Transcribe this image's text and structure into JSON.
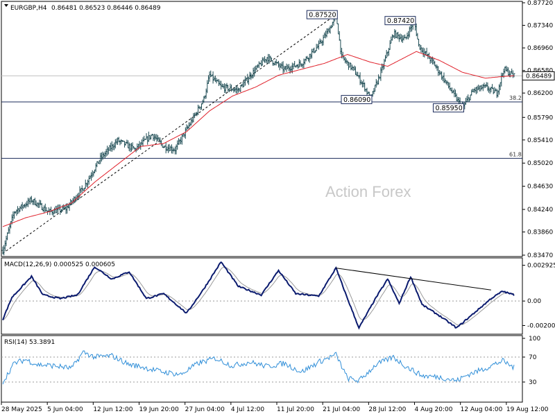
{
  "chart_data": {
    "type": "candlestick",
    "title": "EURGBP,H4",
    "ohlc_text": "0.86481 0.86523 0.86446 0.86489",
    "last_price": "0.86489",
    "watermark": "Action Forex",
    "price_axis": {
      "ylim": [
        0.8347,
        0.8772
      ],
      "ticks": [
        "0.87720",
        "0.87340",
        "0.86960",
        "0.86580",
        "0.86200",
        "0.85790",
        "0.85410",
        "0.85020",
        "0.84630",
        "0.84240",
        "0.83860",
        "0.83470"
      ]
    },
    "x_ticks": [
      "28 May 2025",
      "5 Jun 04:00",
      "12 Jun 12:00",
      "19 Jun 20:00",
      "27 Jun 04:00",
      "4 Jul 12:00",
      "11 Jul 20:00",
      "21 Jul 04:00",
      "28 Jul 12:00",
      "4 Aug 20:00",
      "12 Aug 04:00",
      "19 Aug 12:00"
    ],
    "price_anchors": [
      [
        0,
        0.8355
      ],
      [
        10,
        0.842
      ],
      [
        25,
        0.844
      ],
      [
        40,
        0.842
      ],
      [
        55,
        0.8425
      ],
      [
        70,
        0.846
      ],
      [
        85,
        0.851
      ],
      [
        100,
        0.854
      ],
      [
        115,
        0.8525
      ],
      [
        130,
        0.855
      ],
      [
        140,
        0.853
      ],
      [
        150,
        0.8525
      ],
      [
        165,
        0.8575
      ],
      [
        175,
        0.861
      ],
      [
        180,
        0.865
      ],
      [
        190,
        0.863
      ],
      [
        205,
        0.8625
      ],
      [
        220,
        0.866
      ],
      [
        230,
        0.868
      ],
      [
        245,
        0.866
      ],
      [
        260,
        0.867
      ],
      [
        275,
        0.87
      ],
      [
        285,
        0.873
      ],
      [
        290,
        0.8752
      ],
      [
        295,
        0.868
      ],
      [
        305,
        0.866
      ],
      [
        315,
        0.863
      ],
      [
        320,
        0.8609
      ],
      [
        330,
        0.866
      ],
      [
        340,
        0.872
      ],
      [
        350,
        0.871
      ],
      [
        358,
        0.8742
      ],
      [
        362,
        0.87
      ],
      [
        375,
        0.867
      ],
      [
        385,
        0.864
      ],
      [
        395,
        0.861
      ],
      [
        400,
        0.8595
      ],
      [
        410,
        0.8625
      ],
      [
        420,
        0.863
      ],
      [
        430,
        0.862
      ],
      [
        436,
        0.866
      ],
      [
        445,
        0.8649
      ]
    ],
    "ma_anchors": [
      [
        0,
        0.8395
      ],
      [
        20,
        0.841
      ],
      [
        40,
        0.842
      ],
      [
        60,
        0.8435
      ],
      [
        80,
        0.847
      ],
      [
        100,
        0.85
      ],
      [
        120,
        0.853
      ],
      [
        140,
        0.8535
      ],
      [
        160,
        0.8555
      ],
      [
        180,
        0.859
      ],
      [
        200,
        0.8615
      ],
      [
        220,
        0.863
      ],
      [
        240,
        0.865
      ],
      [
        260,
        0.866
      ],
      [
        280,
        0.867
      ],
      [
        300,
        0.8685
      ],
      [
        320,
        0.8672
      ],
      [
        335,
        0.8665
      ],
      [
        350,
        0.868
      ],
      [
        360,
        0.869
      ],
      [
        380,
        0.8675
      ],
      [
        400,
        0.8655
      ],
      [
        420,
        0.8645
      ],
      [
        436,
        0.8648
      ],
      [
        445,
        0.8649
      ]
    ],
    "swing_labels": [
      {
        "text": "0.87520",
        "bar": 290,
        "price": 0.8752
      },
      {
        "text": "0.87420",
        "bar": 358,
        "price": 0.8742
      },
      {
        "text": "0.86090",
        "bar": 320,
        "price": 0.8609
      },
      {
        "text": "0.85950",
        "bar": 400,
        "price": 0.8595
      }
    ],
    "fib_levels": [
      {
        "label": "38.2",
        "price": 0.8605
      },
      {
        "label": "61.8",
        "price": 0.851
      }
    ],
    "trendline": {
      "from": [
        0,
        0.835
      ],
      "to": [
        290,
        0.8752
      ]
    },
    "macd": {
      "title": "MACD(12,26,9) 0.000525 0.000605",
      "ylim": [
        -0.0026,
        0.0033
      ],
      "ticks": [
        "0.002925",
        "0.00",
        "-0.002002"
      ],
      "anchors": [
        [
          0,
          -0.0015
        ],
        [
          8,
          0.0003
        ],
        [
          25,
          0.002
        ],
        [
          35,
          0.0005
        ],
        [
          50,
          0.0002
        ],
        [
          65,
          0.0005
        ],
        [
          80,
          0.0028
        ],
        [
          95,
          0.0018
        ],
        [
          110,
          0.0024
        ],
        [
          125,
          0.0002
        ],
        [
          140,
          0.0006
        ],
        [
          150,
          -0.0002
        ],
        [
          160,
          -0.001
        ],
        [
          175,
          0.001
        ],
        [
          190,
          0.0032
        ],
        [
          205,
          0.0012
        ],
        [
          225,
          0.0005
        ],
        [
          240,
          0.0025
        ],
        [
          255,
          0.0006
        ],
        [
          275,
          0.0004
        ],
        [
          290,
          0.0027
        ],
        [
          300,
          0.0002
        ],
        [
          310,
          -0.0022
        ],
        [
          325,
          0.0003
        ],
        [
          335,
          0.0018
        ],
        [
          345,
          -0.0002
        ],
        [
          355,
          0.002
        ],
        [
          365,
          -0.0003
        ],
        [
          380,
          -0.0012
        ],
        [
          395,
          -0.0022
        ],
        [
          410,
          -0.001
        ],
        [
          425,
          0.0002
        ],
        [
          435,
          0.0008
        ],
        [
          445,
          0.0005
        ]
      ],
      "trendline": {
        "from": [
          290,
          0.0027
        ],
        "to": [
          425,
          0.0009
        ]
      }
    },
    "rsi": {
      "title": "RSI(14) 53.3891",
      "ylim": [
        0,
        100
      ],
      "ticks": [
        "100",
        "70",
        "30"
      ],
      "levels": [
        70,
        30
      ],
      "anchors": [
        [
          0,
          30
        ],
        [
          10,
          60
        ],
        [
          20,
          66
        ],
        [
          30,
          58
        ],
        [
          45,
          56
        ],
        [
          60,
          52
        ],
        [
          70,
          78
        ],
        [
          80,
          70
        ],
        [
          95,
          72
        ],
        [
          110,
          58
        ],
        [
          120,
          55
        ],
        [
          130,
          50
        ],
        [
          140,
          46
        ],
        [
          155,
          42
        ],
        [
          170,
          60
        ],
        [
          185,
          68
        ],
        [
          200,
          56
        ],
        [
          215,
          62
        ],
        [
          230,
          55
        ],
        [
          245,
          60
        ],
        [
          260,
          46
        ],
        [
          275,
          62
        ],
        [
          290,
          74
        ],
        [
          300,
          36
        ],
        [
          310,
          32
        ],
        [
          325,
          58
        ],
        [
          340,
          70
        ],
        [
          350,
          56
        ],
        [
          365,
          40
        ],
        [
          380,
          38
        ],
        [
          395,
          32
        ],
        [
          405,
          42
        ],
        [
          420,
          52
        ],
        [
          435,
          64
        ],
        [
          445,
          53
        ]
      ]
    }
  }
}
